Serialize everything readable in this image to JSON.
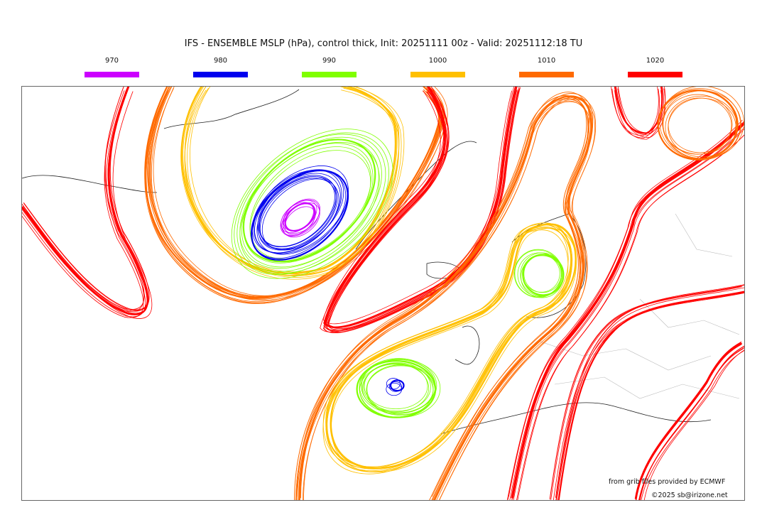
{
  "title": "IFS - ENSEMBLE MSLP (hPa), control thick, Init: 20251111 00z - Valid: 20251112:18 TU",
  "legend": [
    {
      "value": "970",
      "color": "#cc00ff"
    },
    {
      "value": "980",
      "color": "#0000ee"
    },
    {
      "value": "990",
      "color": "#80ff00"
    },
    {
      "value": "1000",
      "color": "#ffc000"
    },
    {
      "value": "1010",
      "color": "#ff6a00"
    },
    {
      "value": "1020",
      "color": "#ff0000"
    }
  ],
  "credits": {
    "source": "from grib files provided by ECMWF",
    "copyright": "©2025 sb@irizone.net"
  }
}
